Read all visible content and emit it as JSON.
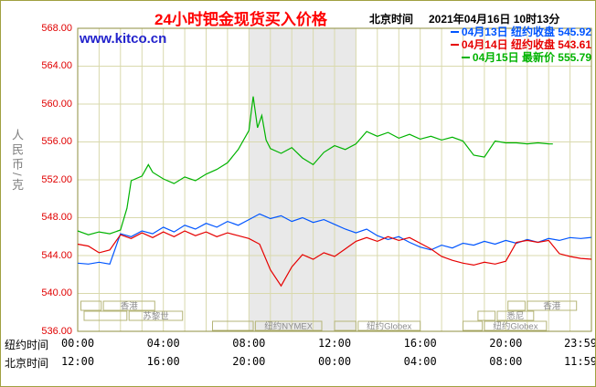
{
  "header": {
    "title": "24小时钯金现货买入价格",
    "clock_label": "北京时间",
    "clock_value": "2021年04月16日 10时13分"
  },
  "watermark": "www.kitco.cn",
  "y_axis": {
    "unit_label": "人民币/克",
    "tick_labels": [
      "568.00",
      "564.00",
      "560.00",
      "556.00",
      "552.00",
      "548.00",
      "544.00",
      "540.00",
      "536.00"
    ]
  },
  "x_axis": {
    "tick_hours": [
      0,
      4,
      8,
      12,
      16,
      20,
      23.983
    ],
    "rows": [
      {
        "label": "纽约时间",
        "ticks": [
          "00:00",
          "04:00",
          "08:00",
          "12:00",
          "16:00",
          "20:00",
          "23:59"
        ]
      },
      {
        "label": "北京时间",
        "ticks": [
          "12:00",
          "16:00",
          "20:00",
          "00:00",
          "04:00",
          "08:00",
          "11:59"
        ]
      }
    ]
  },
  "legend": [
    {
      "date": "04月13日",
      "desc": "纽约收盘",
      "value": "545.92",
      "color": "#0055ff"
    },
    {
      "date": "04月14日",
      "desc": "纽约收盘",
      "value": "543.61",
      "color": "#e60000"
    },
    {
      "date": "04月15日",
      "desc": "最新价",
      "value": "555.79",
      "color": "#00b300"
    }
  ],
  "sessions": {
    "rows": [
      {
        "segments": [
          {
            "start": 0.15,
            "end": 1.1,
            "label": ""
          },
          {
            "start": 1.2,
            "end": 3.6,
            "label": "香港"
          },
          {
            "start": 20.1,
            "end": 20.9,
            "label": ""
          },
          {
            "start": 21.0,
            "end": 23.3,
            "label": "香港"
          }
        ]
      },
      {
        "segments": [
          {
            "start": 0.3,
            "end": 2.3,
            "label": ""
          },
          {
            "start": 2.4,
            "end": 4.9,
            "label": "苏黎世"
          },
          {
            "start": 18.7,
            "end": 19.5,
            "label": ""
          },
          {
            "start": 19.6,
            "end": 21.3,
            "label": "悉尼"
          }
        ]
      },
      {
        "segments": [
          {
            "start": 6.3,
            "end": 8.2,
            "label": ""
          },
          {
            "start": 8.3,
            "end": 11.4,
            "label": "纽约NYMEX"
          },
          {
            "start": 12.0,
            "end": 13.0,
            "label": ""
          },
          {
            "start": 13.1,
            "end": 16.0,
            "label": "纽约Globex"
          },
          {
            "start": 18.0,
            "end": 18.9,
            "label": ""
          },
          {
            "start": 19.0,
            "end": 21.9,
            "label": "纽约Globex"
          }
        ]
      }
    ]
  },
  "chart_data": {
    "type": "line",
    "title": "24小时钯金现货买入价格",
    "ylabel": "人民币/克",
    "x_unit": "hours_new_york_time",
    "xlim": [
      0,
      24
    ],
    "ylim": [
      536,
      568
    ],
    "y_tick_step": 4,
    "grid": true,
    "legend_position": "top-right",
    "shaded_band_hours": [
      8,
      13
    ],
    "series": [
      {
        "name": "04月13日",
        "close_type": "纽约收盘",
        "close_value": 545.92,
        "color": "#0055ff",
        "x": [
          0,
          0.5,
          1,
          1.5,
          2,
          2.5,
          3,
          3.5,
          4,
          4.5,
          5,
          5.5,
          6,
          6.5,
          7,
          7.5,
          8,
          8.5,
          9,
          9.5,
          10,
          10.5,
          11,
          11.5,
          12,
          12.5,
          13,
          13.5,
          14,
          14.5,
          15,
          15.5,
          16,
          16.5,
          17,
          17.5,
          18,
          18.5,
          19,
          19.5,
          20,
          20.5,
          21,
          21.5,
          22,
          22.5,
          23,
          23.5,
          24
        ],
        "y": [
          543.2,
          543.1,
          543.3,
          543.1,
          546.3,
          546.0,
          546.6,
          546.3,
          547.0,
          546.5,
          547.2,
          546.8,
          547.4,
          547.0,
          547.6,
          547.2,
          547.8,
          548.4,
          547.9,
          548.2,
          547.6,
          548.0,
          547.5,
          547.8,
          547.3,
          546.8,
          546.4,
          546.8,
          546.1,
          545.7,
          546.0,
          545.4,
          544.9,
          544.6,
          545.1,
          544.8,
          545.3,
          545.1,
          545.5,
          545.2,
          545.6,
          545.3,
          545.7,
          545.4,
          545.8,
          545.6,
          545.9,
          545.8,
          545.92
        ]
      },
      {
        "name": "04月14日",
        "close_type": "纽约收盘",
        "close_value": 543.61,
        "color": "#e60000",
        "x": [
          0,
          0.5,
          1,
          1.5,
          2,
          2.5,
          3,
          3.5,
          4,
          4.5,
          5,
          5.5,
          6,
          6.5,
          7,
          7.5,
          8,
          8.5,
          9,
          9.5,
          10,
          10.5,
          11,
          11.5,
          12,
          12.5,
          13,
          13.5,
          14,
          14.5,
          15,
          15.5,
          16,
          16.5,
          17,
          17.5,
          18,
          18.5,
          19,
          19.5,
          20,
          20.5,
          21,
          21.5,
          22,
          22.5,
          23,
          23.5,
          24
        ],
        "y": [
          545.2,
          545.0,
          544.3,
          544.6,
          546.2,
          545.8,
          546.4,
          545.9,
          546.5,
          546.0,
          546.6,
          546.1,
          546.5,
          546.0,
          546.4,
          546.1,
          545.8,
          545.2,
          542.5,
          540.8,
          542.8,
          544.1,
          543.6,
          544.3,
          543.9,
          544.7,
          545.5,
          545.9,
          545.5,
          546.0,
          545.6,
          545.9,
          545.3,
          544.7,
          543.9,
          543.5,
          543.2,
          543.0,
          543.3,
          543.1,
          543.4,
          545.4,
          545.6,
          545.4,
          545.6,
          544.2,
          543.9,
          543.7,
          543.61
        ]
      },
      {
        "name": "04月15日",
        "close_type": "最新价",
        "close_value": 555.79,
        "color": "#00b300",
        "x": [
          0,
          0.5,
          1,
          1.5,
          2,
          2.3,
          2.5,
          3,
          3.3,
          3.5,
          4,
          4.5,
          5,
          5.5,
          6,
          6.5,
          7,
          7.5,
          8,
          8.2,
          8.4,
          8.6,
          8.8,
          9,
          9.5,
          10,
          10.5,
          11,
          11.5,
          12,
          12.5,
          13,
          13.5,
          14,
          14.5,
          15,
          15.5,
          16,
          16.5,
          17,
          17.5,
          18,
          18.5,
          19,
          19.5,
          20,
          20.5,
          21,
          21.5,
          22,
          22.2
        ],
        "y": [
          546.6,
          546.2,
          546.5,
          546.3,
          546.7,
          549.0,
          551.9,
          552.4,
          553.6,
          552.8,
          552.1,
          551.6,
          552.3,
          551.9,
          552.6,
          553.1,
          553.8,
          555.2,
          557.2,
          560.8,
          557.5,
          558.8,
          556.2,
          555.3,
          554.8,
          555.4,
          554.3,
          553.6,
          554.9,
          555.6,
          555.2,
          555.8,
          557.1,
          556.6,
          557.0,
          556.4,
          556.8,
          556.3,
          556.6,
          556.2,
          556.5,
          556.1,
          554.6,
          554.4,
          556.1,
          555.9,
          555.9,
          555.8,
          555.9,
          555.8,
          555.79
        ]
      }
    ]
  }
}
